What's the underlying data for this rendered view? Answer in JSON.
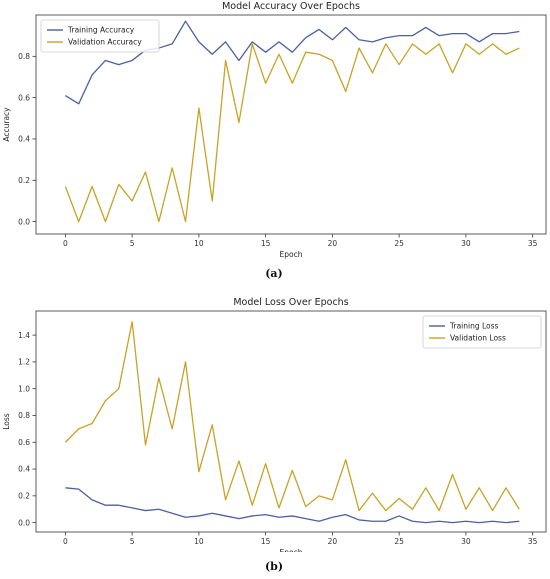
{
  "captions": {
    "a": "(a)",
    "b": "(b)"
  },
  "colors": {
    "training": "#4c5fa3",
    "validation": "#c9a227",
    "axis": "#333333"
  },
  "chart_data": [
    {
      "type": "line",
      "title": "Model Accuracy Over Epochs",
      "xlabel": "Epoch",
      "ylabel": "Accuracy",
      "xlim": [
        -2.2,
        36
      ],
      "ylim": [
        -0.06,
        1.0
      ],
      "xticks": [
        "0",
        "5",
        "10",
        "15",
        "20",
        "25",
        "30",
        "35"
      ],
      "yticks": [
        "0.0",
        "0.2",
        "0.4",
        "0.6",
        "0.8"
      ],
      "legend_position": "top-left",
      "grid": false,
      "x": [
        0,
        1,
        2,
        3,
        4,
        5,
        6,
        7,
        8,
        9,
        10,
        11,
        12,
        13,
        14,
        15,
        16,
        17,
        18,
        19,
        20,
        21,
        22,
        23,
        24,
        25,
        26,
        27,
        28,
        29,
        30,
        31,
        32,
        33,
        34
      ],
      "series": [
        {
          "name": "Training Accuracy",
          "color": "#4c5fa3",
          "values": [
            0.61,
            0.57,
            0.71,
            0.78,
            0.76,
            0.78,
            0.83,
            0.84,
            0.86,
            0.97,
            0.87,
            0.81,
            0.87,
            0.78,
            0.87,
            0.82,
            0.87,
            0.82,
            0.89,
            0.93,
            0.88,
            0.94,
            0.88,
            0.87,
            0.89,
            0.9,
            0.9,
            0.94,
            0.9,
            0.91,
            0.91,
            0.87,
            0.91,
            0.91,
            0.92
          ]
        },
        {
          "name": "Validation Accuracy",
          "color": "#c9a227",
          "values": [
            0.17,
            0.0,
            0.17,
            0.0,
            0.18,
            0.1,
            0.24,
            0.0,
            0.26,
            0.0,
            0.55,
            0.1,
            0.78,
            0.48,
            0.86,
            0.67,
            0.81,
            0.67,
            0.82,
            0.81,
            0.78,
            0.63,
            0.84,
            0.72,
            0.86,
            0.76,
            0.86,
            0.81,
            0.86,
            0.72,
            0.86,
            0.81,
            0.86,
            0.81,
            0.84
          ]
        }
      ]
    },
    {
      "type": "line",
      "title": "Model Loss Over Epochs",
      "xlabel": "Epoch",
      "ylabel": "Loss",
      "xlim": [
        -2.2,
        36
      ],
      "ylim": [
        -0.07,
        1.58
      ],
      "xticks": [
        "0",
        "5",
        "10",
        "15",
        "20",
        "25",
        "30",
        "35"
      ],
      "yticks": [
        "0.0",
        "0.2",
        "0.4",
        "0.6",
        "0.8",
        "1.0",
        "1.2",
        "1.4"
      ],
      "legend_position": "top-right",
      "grid": false,
      "x": [
        0,
        1,
        2,
        3,
        4,
        5,
        6,
        7,
        8,
        9,
        10,
        11,
        12,
        13,
        14,
        15,
        16,
        17,
        18,
        19,
        20,
        21,
        22,
        23,
        24,
        25,
        26,
        27,
        28,
        29,
        30,
        31,
        32,
        33,
        34
      ],
      "series": [
        {
          "name": "Training Loss",
          "color": "#4c5fa3",
          "values": [
            0.26,
            0.25,
            0.17,
            0.13,
            0.13,
            0.11,
            0.09,
            0.1,
            0.07,
            0.04,
            0.05,
            0.07,
            0.05,
            0.03,
            0.05,
            0.06,
            0.04,
            0.05,
            0.03,
            0.01,
            0.04,
            0.06,
            0.02,
            0.01,
            0.01,
            0.05,
            0.01,
            0.0,
            0.01,
            0.0,
            0.01,
            0.0,
            0.01,
            0.0,
            0.01
          ]
        },
        {
          "name": "Validation Loss",
          "color": "#c9a227",
          "values": [
            0.6,
            0.7,
            0.74,
            0.91,
            1.0,
            1.5,
            0.58,
            1.08,
            0.7,
            1.2,
            0.38,
            0.73,
            0.17,
            0.46,
            0.13,
            0.44,
            0.11,
            0.39,
            0.12,
            0.2,
            0.17,
            0.47,
            0.09,
            0.22,
            0.09,
            0.18,
            0.1,
            0.26,
            0.09,
            0.36,
            0.1,
            0.26,
            0.09,
            0.26,
            0.1
          ]
        }
      ]
    }
  ]
}
